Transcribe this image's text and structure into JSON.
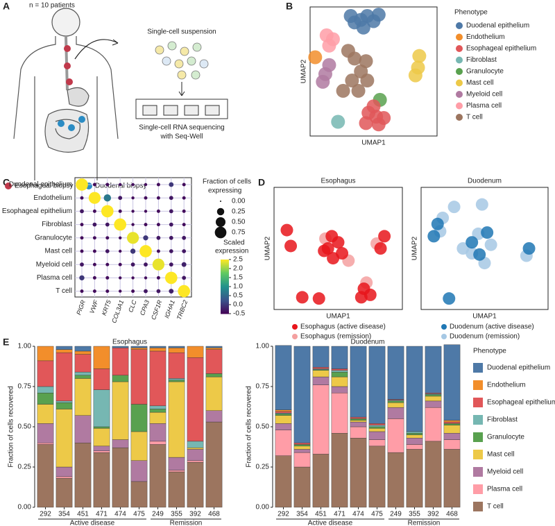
{
  "panel_labels": [
    "A",
    "B",
    "C",
    "D",
    "E"
  ],
  "diagram": {
    "patients": "n = 10 patients",
    "suspension": "Single-cell suspension",
    "sequencing": [
      "Single-cell RNA sequencing",
      "with Seq-Well"
    ],
    "legend": [
      {
        "label": "Esophageal biopsy",
        "color": "#c0394b"
      },
      {
        "label": "Duodenal biopsy",
        "color": "#2b8cc4"
      }
    ]
  },
  "chart_data": [
    {
      "type": "scatter",
      "xlabel": "UMAP1",
      "ylabel": "UMAP2",
      "legend_title": "Phenotype",
      "xlim": [
        0,
        10
      ],
      "ylim": [
        0,
        10
      ],
      "series": [
        {
          "name": "Duodenal epithelium",
          "color": "#4e79a7",
          "x": [
            4.0,
            3.5,
            4.5,
            5.0,
            4.2,
            3.2,
            5.4
          ],
          "y": [
            9.0,
            8.8,
            9.3,
            8.9,
            8.4,
            9.3,
            9.4
          ]
        },
        {
          "name": "Endothelium",
          "color": "#f28e2b",
          "x": [
            0.4
          ],
          "y": [
            6.1
          ]
        },
        {
          "name": "Esophageal epithelium",
          "color": "#e15759",
          "x": [
            4.6,
            5.2,
            4.4,
            5.4,
            5.0,
            5.8
          ],
          "y": [
            1.8,
            1.5,
            1.0,
            0.9,
            2.3,
            1.4
          ]
        },
        {
          "name": "Fibroblast",
          "color": "#76b7b2",
          "x": [
            2.2
          ],
          "y": [
            1.1
          ]
        },
        {
          "name": "Granulocyte",
          "color": "#59a14f",
          "x": [
            5.5
          ],
          "y": [
            2.8
          ]
        },
        {
          "name": "Mast cell",
          "color": "#edc948",
          "x": [
            8.6,
            8.5,
            8.3
          ],
          "y": [
            6.2,
            5.3,
            4.7
          ]
        },
        {
          "name": "Myeloid cell",
          "color": "#b07aa1",
          "x": [
            1.2,
            1.0,
            1.5
          ],
          "y": [
            4.8,
            4.2,
            5.5
          ]
        },
        {
          "name": "Plasma cell",
          "color": "#ff9da7",
          "x": [
            1.3,
            1.8,
            1.5
          ],
          "y": [
            7.8,
            7.5,
            7.0
          ]
        },
        {
          "name": "T cell",
          "color": "#9c755f",
          "x": [
            3.5,
            4.0,
            3.3,
            3.8,
            4.4,
            4.5,
            2.6,
            3.0
          ],
          "y": [
            6.0,
            5.0,
            4.3,
            3.5,
            5.8,
            4.3,
            3.5,
            6.6
          ]
        }
      ]
    },
    {
      "type": "dot",
      "categories": [
        "Duodenal epithelium",
        "Endothelium",
        "Esophageal epithelium",
        "Fibroblast",
        "Granulocyte",
        "Mast cell",
        "Myeloid cell",
        "Plasma cell",
        "T cell"
      ],
      "genes": [
        "PIGR",
        "VWF",
        "KRT5",
        "COL3A1",
        "CLC",
        "CPA3",
        "CSF1R",
        "IGHA1",
        "TRBC2"
      ],
      "fraction": [
        [
          0.85,
          0.03,
          0.03,
          0.02,
          0.02,
          0.02,
          0.03,
          0.08,
          0.03
        ],
        [
          0.03,
          0.8,
          0.25,
          0.05,
          0.02,
          0.03,
          0.03,
          0.05,
          0.03
        ],
        [
          0.05,
          0.03,
          0.85,
          0.03,
          0.02,
          0.02,
          0.03,
          0.05,
          0.03
        ],
        [
          0.03,
          0.05,
          0.05,
          0.85,
          0.02,
          0.03,
          0.03,
          0.05,
          0.03
        ],
        [
          0.03,
          0.03,
          0.03,
          0.02,
          0.8,
          0.1,
          0.05,
          0.05,
          0.05
        ],
        [
          0.03,
          0.03,
          0.05,
          0.02,
          0.1,
          0.85,
          0.03,
          0.05,
          0.05
        ],
        [
          0.05,
          0.03,
          0.03,
          0.03,
          0.05,
          0.05,
          0.8,
          0.05,
          0.08
        ],
        [
          0.1,
          0.03,
          0.03,
          0.02,
          0.02,
          0.02,
          0.03,
          0.85,
          0.05
        ],
        [
          0.03,
          0.03,
          0.03,
          0.02,
          0.03,
          0.05,
          0.05,
          0.08,
          0.85
        ]
      ],
      "expression": [
        [
          2.5,
          -0.4,
          -0.4,
          -0.4,
          -0.4,
          -0.4,
          -0.4,
          0.0,
          -0.4
        ],
        [
          -0.4,
          2.5,
          0.7,
          -0.3,
          -0.4,
          -0.4,
          -0.4,
          -0.3,
          -0.4
        ],
        [
          -0.3,
          -0.4,
          2.5,
          -0.4,
          -0.4,
          -0.4,
          -0.4,
          -0.3,
          -0.4
        ],
        [
          -0.4,
          -0.3,
          -0.3,
          2.5,
          -0.4,
          -0.4,
          -0.4,
          -0.3,
          -0.4
        ],
        [
          -0.4,
          -0.4,
          -0.4,
          -0.4,
          2.4,
          0.0,
          -0.3,
          -0.3,
          -0.3
        ],
        [
          -0.4,
          -0.4,
          -0.3,
          -0.4,
          0.0,
          2.5,
          -0.4,
          -0.3,
          -0.3
        ],
        [
          -0.3,
          -0.4,
          -0.4,
          -0.4,
          -0.3,
          -0.3,
          2.4,
          -0.3,
          -0.2
        ],
        [
          0.0,
          -0.4,
          -0.4,
          -0.4,
          -0.4,
          -0.4,
          -0.4,
          2.5,
          -0.3
        ],
        [
          -0.4,
          -0.4,
          -0.4,
          -0.4,
          -0.4,
          -0.3,
          -0.3,
          -0.2,
          2.5
        ]
      ],
      "size_legend_title": [
        "Fraction of cells",
        "expressing"
      ],
      "size_ticks": [
        {
          "value": 0,
          "label": "0.00"
        },
        0.25,
        {
          "value": 0.5,
          "label": "0.50"
        },
        0.75
      ],
      "color_legend_title": [
        "Scaled",
        "expression"
      ],
      "clim": [
        -0.5,
        2.5
      ],
      "cticks": [
        2.5,
        {
          "value": 2,
          "label": "2.0"
        },
        1.5,
        {
          "value": 1,
          "label": "1.0"
        },
        0.5,
        {
          "value": 0,
          "label": "0.0"
        },
        -0.5
      ]
    },
    {
      "type": "scatter",
      "title": "Esophagus",
      "xlabel": "UMAP1",
      "ylabel": "UMAP2",
      "xlim": [
        0,
        10
      ],
      "ylim": [
        0,
        10
      ],
      "series": [
        {
          "name": "Esophagus (active disease)",
          "color": "#e8151b",
          "x": [
            4.5,
            4.2,
            5.0,
            4.6,
            5.3,
            7.0,
            7.5,
            6.8,
            8.6,
            8.3,
            1.0,
            1.3,
            2.2,
            3.5,
            3.9
          ],
          "y": [
            6.0,
            5.0,
            5.5,
            4.2,
            4.6,
            1.7,
            1.2,
            1.0,
            6.0,
            5.0,
            6.5,
            5.2,
            1.0,
            0.9,
            4.8
          ]
        },
        {
          "name": "Esophagus (remission)",
          "color": "#f4a0a0",
          "x": [
            4.0,
            7.2,
            5.8,
            8.0
          ],
          "y": [
            5.8,
            2.2,
            4.0,
            5.4
          ]
        }
      ]
    },
    {
      "type": "scatter",
      "title": "Duodenum",
      "xlabel": "UMAP1",
      "ylabel": "UMAP2",
      "xlim": [
        0,
        10
      ],
      "ylim": [
        0,
        10
      ],
      "series": [
        {
          "name": "Duodenum (active disease)",
          "color": "#1f77b4",
          "x": [
            1.3,
            1.0,
            4.0,
            5.2,
            8.5,
            2.2,
            4.6
          ],
          "y": [
            7.0,
            6.0,
            5.5,
            6.3,
            5.0,
            0.9,
            4.5
          ]
        },
        {
          "name": "Duodenum (remission)",
          "color": "#a6c8e4",
          "x": [
            1.7,
            1.5,
            4.5,
            4.0,
            5.5,
            3.3,
            5.0,
            8.3,
            2.6,
            4.8
          ],
          "y": [
            7.5,
            6.4,
            6.2,
            4.6,
            5.3,
            5.0,
            3.8,
            4.4,
            8.4,
            8.6
          ]
        }
      ]
    },
    {
      "type": "stacked_bar",
      "title": "Esophagus",
      "ylabel": "Fraction of cells recovered",
      "categories": [
        "292",
        "354",
        "451",
        "471",
        "474",
        "475",
        "249",
        "355",
        "392",
        "468"
      ],
      "groups": [
        "Active disease",
        "Remission"
      ],
      "ylim": [
        0,
        1
      ],
      "yticks": [
        {
          "value": 0,
          "label": "0.00"
        },
        0.25,
        {
          "value": 0.5,
          "label": "0.50"
        },
        0.75,
        {
          "value": 1,
          "label": "1.00"
        }
      ],
      "series": [
        {
          "name": "T cell",
          "color": "#9c755f",
          "values": [
            0.39,
            0.18,
            0.4,
            0.34,
            0.37,
            0.16,
            0.39,
            0.22,
            0.28,
            0.53
          ]
        },
        {
          "name": "Plasma cell",
          "color": "#ff9da7",
          "values": [
            0.01,
            0.01,
            0,
            0.01,
            0,
            0,
            0.02,
            0.01,
            0.01,
            0
          ]
        },
        {
          "name": "Myeloid cell",
          "color": "#b07aa1",
          "values": [
            0.12,
            0.06,
            0.17,
            0.03,
            0.05,
            0.13,
            0.11,
            0.08,
            0.07,
            0.07
          ]
        },
        {
          "name": "Mast cell",
          "color": "#edc948",
          "values": [
            0.12,
            0.36,
            0.23,
            0.11,
            0.36,
            0.18,
            0.07,
            0.47,
            0.01,
            0.21
          ]
        },
        {
          "name": "Granulocyte",
          "color": "#59a14f",
          "values": [
            0.07,
            0.04,
            0.02,
            0.01,
            0.04,
            0.17,
            0.02,
            0.01,
            0,
            0.02
          ]
        },
        {
          "name": "Fibroblast",
          "color": "#76b7b2",
          "values": [
            0.04,
            0.01,
            0.02,
            0.23,
            0,
            0,
            0.02,
            0.01,
            0.04,
            0
          ]
        },
        {
          "name": "Esophageal epithelium",
          "color": "#e15759",
          "values": [
            0.16,
            0.3,
            0.11,
            0.13,
            0.17,
            0.34,
            0.34,
            0.16,
            0.52,
            0.15
          ]
        },
        {
          "name": "Endothelium",
          "color": "#f28e2b",
          "values": [
            0.09,
            0.02,
            0.02,
            0.14,
            0,
            0.01,
            0.02,
            0.03,
            0.07,
            0.01
          ]
        },
        {
          "name": "Duodenal epithelium",
          "color": "#4e79a7",
          "values": [
            0,
            0.02,
            0.03,
            0,
            0.01,
            0.01,
            0.01,
            0.01,
            0,
            0.01
          ]
        }
      ]
    },
    {
      "type": "stacked_bar",
      "title": "Duodenum",
      "ylabel": "Fraction of cells recovered",
      "legend_title": "Phenotype",
      "categories": [
        "292",
        "354",
        "451",
        "471",
        "474",
        "475",
        "249",
        "355",
        "392",
        "468"
      ],
      "groups": [
        "Active disease",
        "Remission"
      ],
      "ylim": [
        0,
        1
      ],
      "yticks": [
        {
          "value": 0,
          "label": "0.00"
        },
        0.25,
        {
          "value": 0.5,
          "label": "0.50"
        },
        0.75,
        {
          "value": 1,
          "label": "1.00"
        }
      ],
      "series": [
        {
          "name": "T cell",
          "color": "#9c755f",
          "values": [
            0.32,
            0.25,
            0.33,
            0.46,
            0.43,
            0.38,
            0.34,
            0.36,
            0.41,
            0.36
          ]
        },
        {
          "name": "Plasma cell",
          "color": "#ff9da7",
          "values": [
            0.16,
            0.09,
            0.43,
            0.25,
            0.07,
            0.04,
            0.21,
            0.03,
            0.21,
            0.06
          ]
        },
        {
          "name": "Myeloid cell",
          "color": "#b07aa1",
          "values": [
            0.04,
            0.02,
            0.05,
            0.04,
            0.03,
            0.05,
            0.07,
            0.04,
            0.04,
            0.04
          ]
        },
        {
          "name": "Mast cell",
          "color": "#edc948",
          "values": [
            0.05,
            0.02,
            0.04,
            0.06,
            0.01,
            0.02,
            0.03,
            0.02,
            0.03,
            0.05
          ]
        },
        {
          "name": "Granulocyte",
          "color": "#59a14f",
          "values": [
            0.01,
            0.01,
            0.005,
            0.03,
            0.01,
            0.01,
            0.01,
            0.01,
            0.01,
            0.01
          ]
        },
        {
          "name": "Fibroblast",
          "color": "#76b7b2",
          "values": [
            0.005,
            0,
            0.005,
            0.01,
            0,
            0.01,
            0.005,
            0.01,
            0.005,
            0
          ]
        },
        {
          "name": "Esophageal epithelium",
          "color": "#e15759",
          "values": [
            0.01,
            0.01,
            0.01,
            0.01,
            0.01,
            0.01,
            0.005,
            0,
            0.005,
            0.01
          ]
        },
        {
          "name": "Endothelium",
          "color": "#f28e2b",
          "values": [
            0.01,
            0,
            0,
            0,
            0,
            0,
            0,
            0,
            0,
            0.01
          ]
        },
        {
          "name": "Duodenal epithelium",
          "color": "#4e79a7",
          "values": [
            0.4,
            0.6,
            0.13,
            0.14,
            0.44,
            0.48,
            0.33,
            0.53,
            0.29,
            0.47
          ]
        }
      ]
    }
  ]
}
